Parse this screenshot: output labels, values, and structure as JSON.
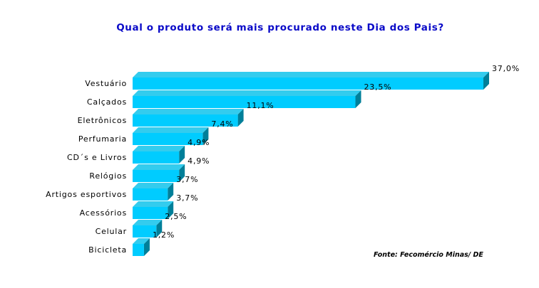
{
  "chart_data": {
    "type": "bar",
    "orientation": "horizontal",
    "title": "Qual o produto será mais procurado neste Dia dos Pais?",
    "source": "Fonte: Fecomércio Minas/ DE",
    "categories": [
      "Vestuário",
      "Calçados",
      "Eletrônicos",
      "Perfumaria",
      "CD´s e Livros",
      "Relógios",
      "Artigos esportivos",
      "Acessórios",
      "Celular",
      "Bicicleta"
    ],
    "values": [
      37.0,
      23.5,
      11.1,
      7.4,
      4.9,
      4.9,
      3.7,
      3.7,
      2.5,
      1.2
    ],
    "value_labels": [
      "37,0%",
      "23,5%",
      "11,1%",
      "7,4%",
      "4,9%",
      "4,9%",
      "3,7%",
      "3,7%",
      "2,5%",
      "1,2%"
    ],
    "xlim": [
      0,
      37.0
    ],
    "grid": false,
    "legend": "none",
    "colors": {
      "front": "#00ccff",
      "top": "#33ccee",
      "side": "#007f99",
      "title": "#0a0ac8"
    }
  }
}
